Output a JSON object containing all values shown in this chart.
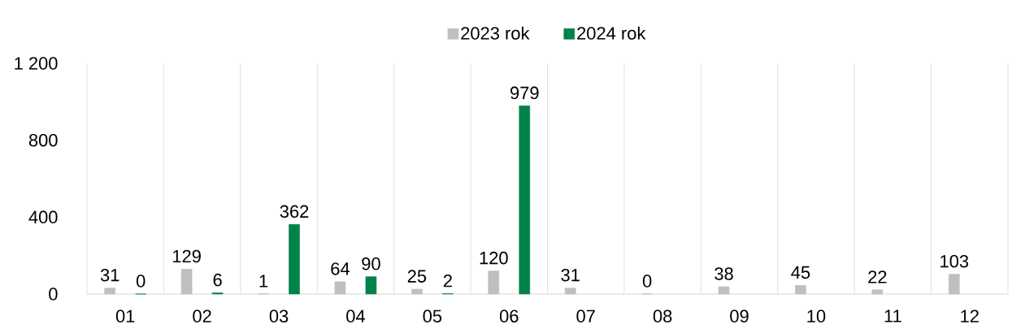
{
  "chart_data": {
    "type": "bar",
    "categories": [
      "01",
      "02",
      "03",
      "04",
      "05",
      "06",
      "07",
      "08",
      "09",
      "10",
      "11",
      "12"
    ],
    "series": [
      {
        "name": "2023 rok",
        "color": "#bfbfbf",
        "values": [
          31,
          129,
          1,
          64,
          25,
          120,
          31,
          0,
          38,
          45,
          22,
          103
        ]
      },
      {
        "name": "2024 rok",
        "color": "#00834a",
        "values": [
          0,
          6,
          362,
          90,
          2,
          979,
          null,
          null,
          null,
          null,
          null,
          null
        ]
      }
    ],
    "ylim": [
      0,
      1200
    ],
    "yticks": [
      0,
      400,
      800,
      {
        "value": 1200,
        "label": "1 200"
      }
    ],
    "grid": "x",
    "legend": "top",
    "data_labels": true
  }
}
